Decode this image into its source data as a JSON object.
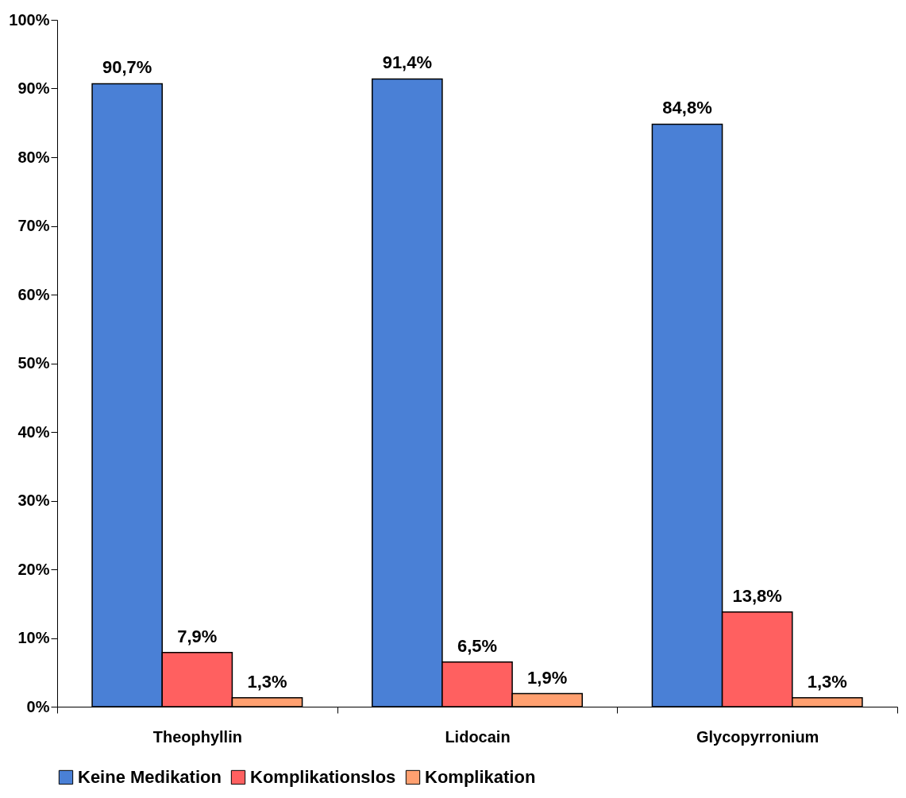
{
  "chart_data": {
    "type": "bar",
    "categories": [
      "Theophyllin",
      "Lidocain",
      "Glycopyrronium"
    ],
    "series": [
      {
        "name": "Keine Medikation",
        "color": "#4a80d6",
        "values": [
          90.7,
          91.4,
          84.8
        ],
        "value_labels": [
          "90,7%",
          "91,4%",
          "84,8%"
        ]
      },
      {
        "name": "Komplikationslos",
        "color": "#ff6060",
        "values": [
          7.9,
          6.5,
          13.8
        ],
        "value_labels": [
          "7,9%",
          "6,5%",
          "13,8%"
        ]
      },
      {
        "name": "Komplikation",
        "color": "#ffa070",
        "values": [
          1.3,
          1.9,
          1.3
        ],
        "value_labels": [
          "1,3%",
          "1,9%",
          "1,3%"
        ]
      }
    ],
    "ylim": [
      0,
      100
    ],
    "yticks": [
      {
        "value": 0,
        "label": "0%"
      },
      {
        "value": 10,
        "label": "10%"
      },
      {
        "value": 20,
        "label": "20%"
      },
      {
        "value": 30,
        "label": "30%"
      },
      {
        "value": 40,
        "label": "40%"
      },
      {
        "value": 50,
        "label": "50%"
      },
      {
        "value": 60,
        "label": "60%"
      },
      {
        "value": 70,
        "label": "70%"
      },
      {
        "value": 80,
        "label": "80%"
      },
      {
        "value": 90,
        "label": "90%"
      },
      {
        "value": 100,
        "label": "100%"
      }
    ],
    "grid": false,
    "legend": "bottom"
  }
}
